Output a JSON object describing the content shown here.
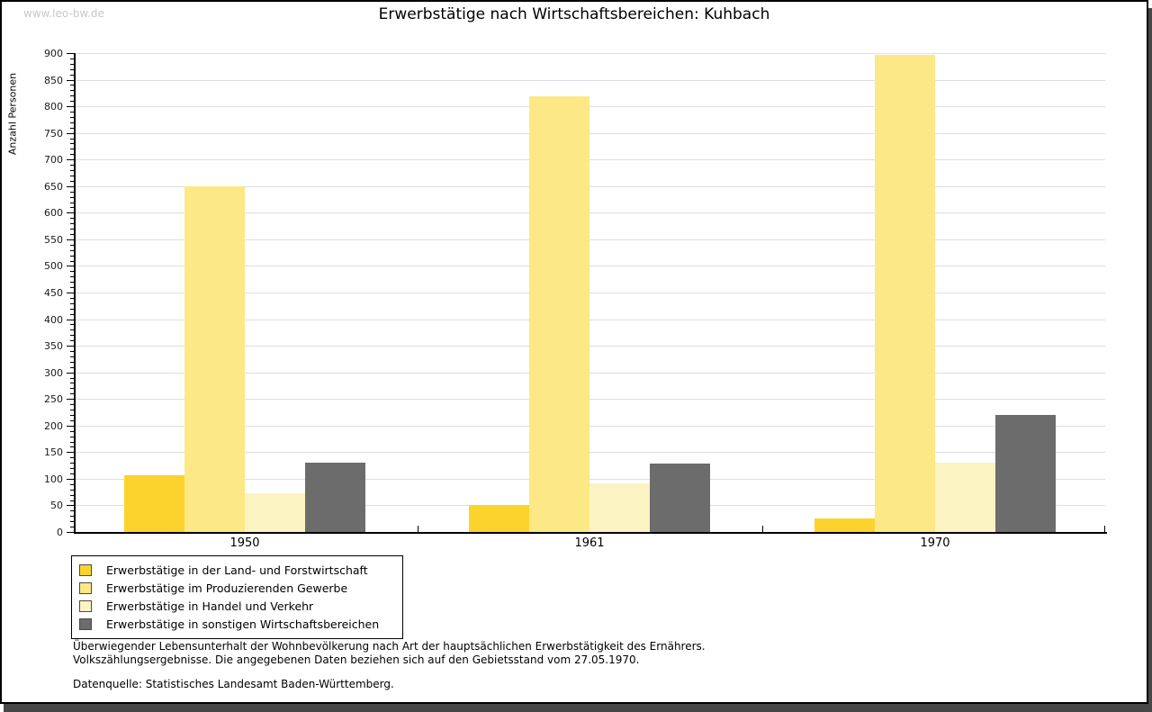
{
  "watermark": "www.leo-bw.de",
  "header": {
    "title": "Erwerbstätige nach Wirtschaftsbereichen: Kuhbach"
  },
  "chart_data": {
    "type": "bar",
    "title": "Erwerbstätige nach Wirtschaftsbereichen: Kuhbach",
    "xlabel": "",
    "ylabel": "Anzahl Personen",
    "categories": [
      "1950",
      "1961",
      "1970"
    ],
    "series": [
      {
        "name": "Erwerbstätige in der Land- und Forstwirtschaft",
        "color": "#FCD32D",
        "values": [
          107,
          50,
          25
        ]
      },
      {
        "name": "Erwerbstätige im Produzierenden Gewerbe",
        "color": "#FCE885",
        "values": [
          650,
          818,
          897
        ]
      },
      {
        "name": "Erwerbstätige in Handel und Verkehr",
        "color": "#FCF3C2",
        "values": [
          72,
          92,
          130
        ]
      },
      {
        "name": "Erwerbstätige in sonstigen Wirtschaftsbereichen",
        "color": "#6C6C6C",
        "values": [
          130,
          128,
          220
        ]
      }
    ],
    "ylim": [
      0,
      900
    ],
    "ytick_step": 50,
    "yminor_step": 10,
    "grid": true,
    "legend_position": "bottom-left",
    "colors": {
      "grid": "#dedede",
      "axis": "#000000",
      "watermark": "#c8c8c8",
      "frame_shadow": "#474747"
    }
  },
  "footnotes": {
    "line1": "Überwiegender Lebensunterhalt der Wohnbevölkerung nach Art der hauptsächlichen Erwerbstätigkeit des Ernährers.",
    "line2": "Volkszählungsergebnisse. Die angegebenen Daten beziehen sich auf den Gebietsstand vom 27.05.1970.",
    "source": "Datenquelle: Statistisches Landesamt Baden-Württemberg."
  }
}
